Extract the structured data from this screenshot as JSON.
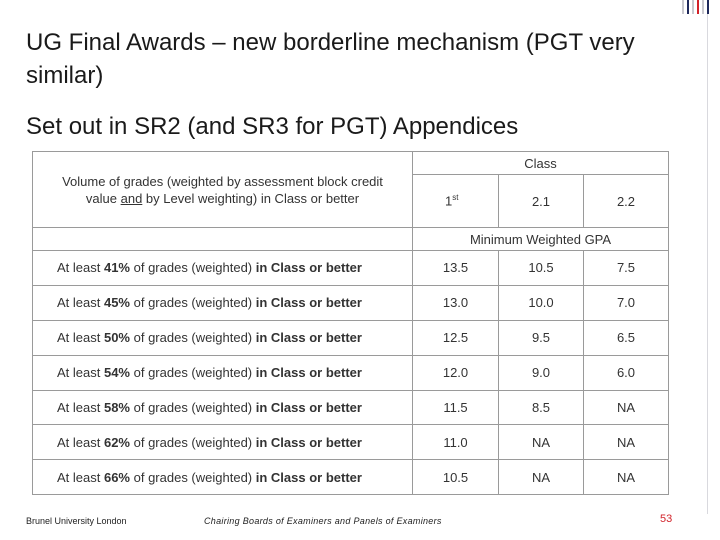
{
  "title": "UG Final Awards – new borderline mechanism (PGT very similar)",
  "subtitle": "Set out in SR2 (and SR3 for PGT)  Appendices",
  "table": {
    "class_header": "Class",
    "description_header_pre": "Volume of grades (weighted by assessment block credit value ",
    "description_header_and": "and",
    "description_header_post": " by Level weighting) in Class or better",
    "columns": [
      {
        "base": "1",
        "sup": "st"
      },
      {
        "base": "2.1",
        "sup": ""
      },
      {
        "base": "2.2",
        "sup": ""
      }
    ],
    "gpa_header": "Minimum Weighted GPA",
    "row_prefix": "At least ",
    "row_middle": " of grades (weighted) ",
    "row_suffix": "in Class or better",
    "rows": [
      {
        "percent": "41%",
        "v1": "13.5",
        "v2": "10.5",
        "v3": "7.5"
      },
      {
        "percent": "45%",
        "v1": "13.0",
        "v2": "10.0",
        "v3": "7.0"
      },
      {
        "percent": "50%",
        "v1": "12.5",
        "v2": "9.5",
        "v3": "6.5"
      },
      {
        "percent": "54%",
        "v1": "12.0",
        "v2": "9.0",
        "v3": "6.0"
      },
      {
        "percent": "58%",
        "v1": "11.5",
        "v2": "8.5",
        "v3": "NA"
      },
      {
        "percent": "62%",
        "v1": "11.0",
        "v2": "NA",
        "v3": "NA"
      },
      {
        "percent": "66%",
        "v1": "10.5",
        "v2": "NA",
        "v3": "NA"
      }
    ]
  },
  "footer": {
    "left": "Brunel University London",
    "middle": "Chairing Boards of Examiners and Panels of Examiners",
    "page": "53"
  },
  "colors": {
    "accent_red": "#d2232a",
    "accent_navy": "#1f2a5c",
    "border": "#9a9a9a"
  }
}
